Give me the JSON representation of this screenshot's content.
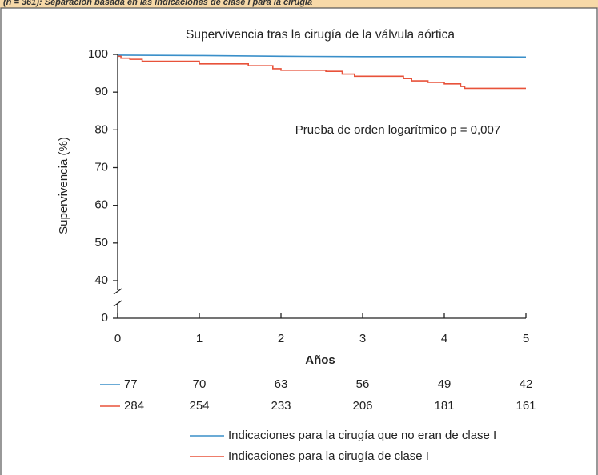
{
  "banner": "(n = 361): Separación basada en las indicaciones de clase I para la cirugía",
  "chart_data": {
    "type": "line",
    "title": "Supervivencia tras la cirugía de la válvula aórtica",
    "x_label": "Años",
    "y_label": "Supervivencia (%)",
    "annotation": "Prueba de orden logarítmico p = 0,007",
    "xlim": [
      0,
      5
    ],
    "xticks": [
      0,
      1,
      2,
      3,
      4,
      5
    ],
    "ylim": [
      0,
      100
    ],
    "yticks": [
      0,
      40,
      50,
      60,
      70,
      80,
      90,
      100
    ],
    "y_break": [
      0,
      40
    ],
    "series": [
      {
        "name": "Indicaciones para la cirugía que no eran de clase I",
        "color": "#3a8fc9",
        "x": [
          0,
          1,
          2,
          3,
          4,
          5
        ],
        "values": [
          99.8,
          99.7,
          99.5,
          99.4,
          99.4,
          99.3
        ],
        "at_risk": [
          77,
          70,
          63,
          56,
          49,
          42
        ]
      },
      {
        "name": "Indicaciones para la cirugía de clase I",
        "color": "#e8523a",
        "x": [
          0,
          0.04,
          0.04,
          0.15,
          0.15,
          0.3,
          0.3,
          1,
          1,
          1.6,
          1.6,
          1.9,
          1.9,
          2,
          2,
          2.55,
          2.55,
          2.75,
          2.75,
          2.9,
          2.9,
          3.5,
          3.5,
          3.6,
          3.6,
          3.8,
          3.8,
          4,
          4,
          4.2,
          4.2,
          4.25,
          4.25,
          5
        ],
        "values": [
          99.5,
          99.5,
          99,
          99,
          98.7,
          98.7,
          98.2,
          98.2,
          97.5,
          97.5,
          97,
          97,
          96.2,
          96.2,
          95.8,
          95.8,
          95.5,
          95.5,
          94.8,
          94.8,
          94.2,
          94.2,
          93.6,
          93.6,
          93,
          93,
          92.6,
          92.6,
          92.2,
          92.2,
          91.5,
          91.5,
          91,
          91
        ],
        "at_risk": [
          284,
          254,
          233,
          206,
          181,
          161
        ]
      }
    ]
  }
}
